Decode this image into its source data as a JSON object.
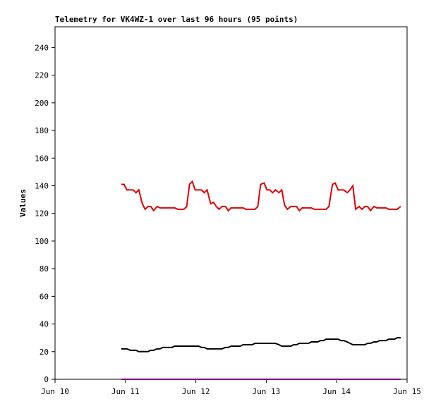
{
  "chart_data": {
    "type": "line",
    "title": "Telemetry for VK4WZ-1 over last 96 hours (95 points)",
    "y_label": "Values",
    "xlim": [
      10,
      15
    ],
    "xticks": [
      {
        "value": 10,
        "label": "Jun 10"
      },
      {
        "value": 11,
        "label": "Jun 11"
      },
      {
        "value": 12,
        "label": "Jun 12"
      },
      {
        "value": 13,
        "label": "Jun 13"
      },
      {
        "value": 14,
        "label": "Jun 14"
      },
      {
        "value": 15,
        "label": "Jun 15"
      }
    ],
    "ylim": [
      0,
      255
    ],
    "yticks": [
      0,
      20,
      40,
      60,
      80,
      100,
      120,
      140,
      160,
      180,
      200,
      220,
      240
    ],
    "grid": false,
    "x": [
      10.94,
      10.98,
      11.02,
      11.07,
      11.11,
      11.15,
      11.19,
      11.24,
      11.28,
      11.32,
      11.36,
      11.4,
      11.45,
      11.49,
      11.53,
      11.57,
      11.62,
      11.66,
      11.7,
      11.74,
      11.78,
      11.83,
      11.87,
      11.91,
      11.95,
      11.99,
      12.04,
      12.08,
      12.12,
      12.16,
      12.21,
      12.25,
      12.29,
      12.33,
      12.37,
      12.42,
      12.46,
      12.5,
      12.54,
      12.59,
      12.63,
      12.67,
      12.71,
      12.75,
      12.8,
      12.84,
      12.88,
      12.92,
      12.97,
      13.01,
      13.05,
      13.09,
      13.13,
      13.18,
      13.22,
      13.26,
      13.3,
      13.35,
      13.39,
      13.43,
      13.47,
      13.51,
      13.56,
      13.6,
      13.64,
      13.68,
      13.73,
      13.77,
      13.81,
      13.85,
      13.89,
      13.94,
      13.98,
      14.02,
      14.06,
      14.1,
      14.15,
      14.19,
      14.23,
      14.27,
      14.32,
      14.36,
      14.4,
      14.44,
      14.48,
      14.53,
      14.57,
      14.61,
      14.65,
      14.7,
      14.74,
      14.78,
      14.82,
      14.86,
      14.91
    ],
    "series": [
      {
        "color": "#e00000",
        "values": [
          141,
          141,
          137,
          137,
          137,
          135,
          137,
          127,
          123,
          125,
          125,
          122,
          125,
          124,
          124,
          124,
          124,
          124,
          124,
          123,
          123,
          123,
          125,
          141,
          143,
          137,
          137,
          137,
          135,
          137,
          127,
          128,
          125,
          123,
          125,
          125,
          122,
          124,
          124,
          124,
          124,
          124,
          123,
          123,
          123,
          123,
          125,
          141,
          142,
          137,
          137,
          135,
          137,
          135,
          137,
          126,
          123,
          125,
          125,
          125,
          122,
          124,
          124,
          124,
          124,
          123,
          123,
          123,
          123,
          123,
          125,
          141,
          142,
          137,
          137,
          137,
          135,
          137,
          140,
          123,
          125,
          123,
          125,
          125,
          122,
          125,
          124,
          124,
          124,
          124,
          123,
          123,
          123,
          123,
          125
        ]
      },
      {
        "color": "#000000",
        "values": [
          22,
          22,
          22,
          21,
          21,
          21,
          20,
          20,
          20,
          20,
          21,
          21,
          22,
          22,
          23,
          23,
          23,
          23,
          24,
          24,
          24,
          24,
          24,
          24,
          24,
          24,
          24,
          23,
          23,
          22,
          22,
          22,
          22,
          22,
          22,
          23,
          23,
          24,
          24,
          24,
          24,
          25,
          25,
          25,
          25,
          26,
          26,
          26,
          26,
          26,
          26,
          26,
          26,
          25,
          24,
          24,
          24,
          24,
          25,
          25,
          26,
          26,
          26,
          26,
          27,
          27,
          27,
          28,
          28,
          29,
          29,
          29,
          29,
          29,
          28,
          28,
          27,
          26,
          25,
          25,
          25,
          25,
          25,
          26,
          26,
          27,
          27,
          28,
          28,
          28,
          29,
          29,
          29,
          30,
          30
        ]
      },
      {
        "color": "#800080",
        "values": [
          0,
          0,
          0,
          0,
          0,
          0,
          0,
          0,
          0,
          0,
          0,
          0,
          0,
          0,
          0,
          0,
          0,
          0,
          0,
          0,
          0,
          0,
          0,
          0,
          0,
          0,
          0,
          0,
          0,
          0,
          0,
          0,
          0,
          0,
          0,
          0,
          0,
          0,
          0,
          0,
          0,
          0,
          0,
          0,
          0,
          0,
          0,
          0,
          0,
          0,
          0,
          0,
          0,
          0,
          0,
          0,
          0,
          0,
          0,
          0,
          0,
          0,
          0,
          0,
          0,
          0,
          0,
          0,
          0,
          0,
          0,
          0,
          0,
          0,
          0,
          0,
          0,
          0,
          0,
          0,
          0,
          0,
          0,
          0,
          0,
          0,
          0,
          0,
          0,
          0,
          0,
          0,
          0,
          0,
          0
        ]
      }
    ]
  }
}
